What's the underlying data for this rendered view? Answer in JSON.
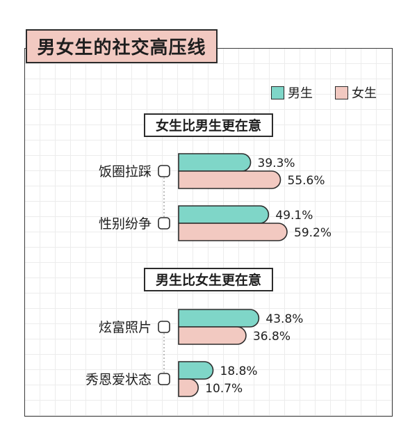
{
  "title": "男女生的社交高压线",
  "legend": [
    {
      "label": "男生",
      "color": "#7fd6c8"
    },
    {
      "label": "女生",
      "color": "#f2c9c1"
    }
  ],
  "chart_data": {
    "type": "bar",
    "orientation": "horizontal",
    "unit": "%",
    "groups": [
      {
        "heading": "女生比男生更在意",
        "categories": [
          "饭圈拉踩",
          "性别纷争"
        ]
      },
      {
        "heading": "男生比女生更在意",
        "categories": [
          "炫富照片",
          "秀恩爱状态"
        ]
      }
    ],
    "categories": [
      "饭圈拉踩",
      "性别纷争",
      "炫富照片",
      "秀恩爱状态"
    ],
    "series": [
      {
        "name": "男生",
        "color": "#7fd6c8",
        "values": [
          39.3,
          49.1,
          43.8,
          18.8
        ],
        "labels": [
          "39.3%",
          "49.1%",
          "43.8%",
          "18.8%"
        ]
      },
      {
        "name": "女生",
        "color": "#f2c9c1",
        "values": [
          55.6,
          59.2,
          36.8,
          10.7
        ],
        "labels": [
          "55.6%",
          "59.2%",
          "36.8%",
          "10.7%"
        ]
      }
    ],
    "xlim": [
      0,
      60
    ],
    "grid": true,
    "legend_position": "top-right"
  }
}
